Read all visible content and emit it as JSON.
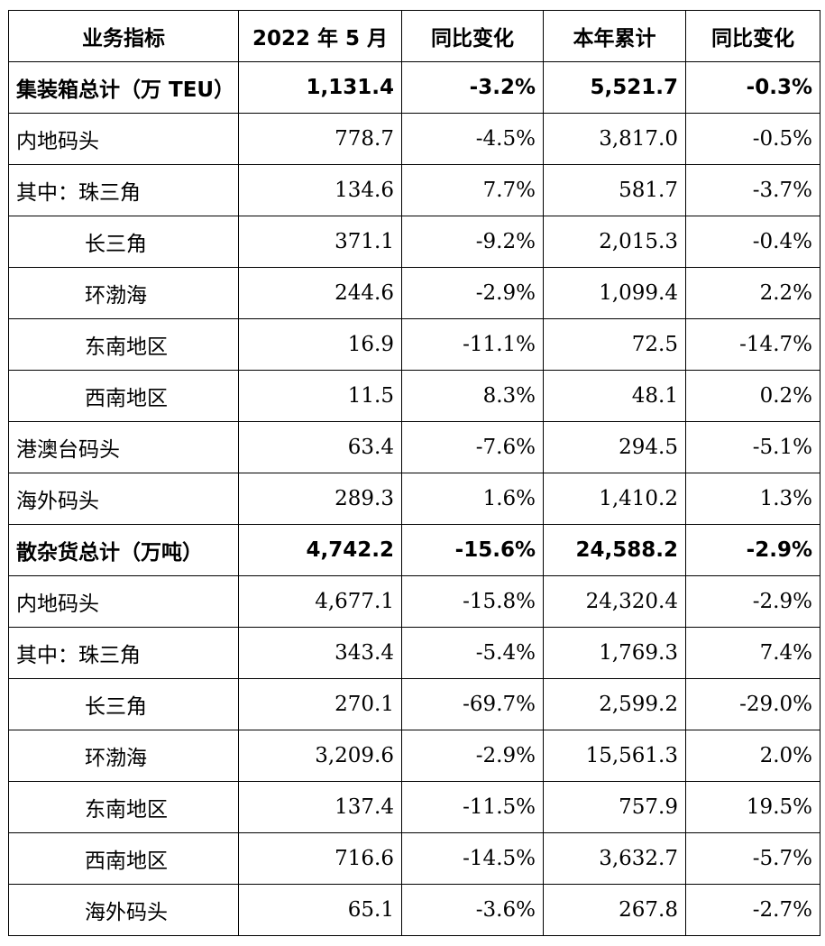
{
  "headers": [
    "业务指标",
    "2022 年 5 月",
    "同比变化",
    "本年累计",
    "同比变化"
  ],
  "rows": [
    {
      "label": "集装箱总计（万 TEU）",
      "month": "1,131.4",
      "month_yoy": "-3.2%",
      "ytd": "5,521.7",
      "ytd_yoy": "-0.3%"
    },
    {
      "label": "内地码头",
      "month": "778.7",
      "month_yoy": "-4.5%",
      "ytd": "3,817.0",
      "ytd_yoy": "-0.5%"
    },
    {
      "label": "其中：珠三角",
      "month": "134.6",
      "month_yoy": "7.7%",
      "ytd": "581.7",
      "ytd_yoy": "-3.7%"
    },
    {
      "label": "长三角",
      "month": "371.1",
      "month_yoy": "-9.2%",
      "ytd": "2,015.3",
      "ytd_yoy": "-0.4%"
    },
    {
      "label": "环渤海",
      "month": "244.6",
      "month_yoy": "-2.9%",
      "ytd": "1,099.4",
      "ytd_yoy": "2.2%"
    },
    {
      "label": "东南地区",
      "month": "16.9",
      "month_yoy": "-11.1%",
      "ytd": "72.5",
      "ytd_yoy": "-14.7%"
    },
    {
      "label": "西南地区",
      "month": "11.5",
      "month_yoy": "8.3%",
      "ytd": "48.1",
      "ytd_yoy": "0.2%"
    },
    {
      "label": "港澳台码头",
      "month": "63.4",
      "month_yoy": "-7.6%",
      "ytd": "294.5",
      "ytd_yoy": "-5.1%"
    },
    {
      "label": "海外码头",
      "month": "289.3",
      "month_yoy": "1.6%",
      "ytd": "1,410.2",
      "ytd_yoy": "1.3%"
    },
    {
      "label": "散杂货总计（万吨）",
      "month": "4,742.2",
      "month_yoy": "-15.6%",
      "ytd": "24,588.2",
      "ytd_yoy": "-2.9%"
    },
    {
      "label": "内地码头",
      "month": "4,677.1",
      "month_yoy": "-15.8%",
      "ytd": "24,320.4",
      "ytd_yoy": "-2.9%"
    },
    {
      "label": "其中：珠三角",
      "month": "343.4",
      "month_yoy": "-5.4%",
      "ytd": "1,769.3",
      "ytd_yoy": "7.4%"
    },
    {
      "label": "长三角",
      "month": "270.1",
      "month_yoy": "-69.7%",
      "ytd": "2,599.2",
      "ytd_yoy": "-29.0%"
    },
    {
      "label": "环渤海",
      "month": "3,209.6",
      "month_yoy": "-2.9%",
      "ytd": "15,561.3",
      "ytd_yoy": "2.0%"
    },
    {
      "label": "东南地区",
      "month": "137.4",
      "month_yoy": "-11.5%",
      "ytd": "757.9",
      "ytd_yoy": "19.5%"
    },
    {
      "label": "西南地区",
      "month": "716.6",
      "month_yoy": "-14.5%",
      "ytd": "3,632.7",
      "ytd_yoy": "-5.7%"
    },
    {
      "label": "海外码头",
      "month": "65.1",
      "month_yoy": "-3.6%",
      "ytd": "267.8",
      "ytd_yoy": "-2.7%"
    }
  ]
}
